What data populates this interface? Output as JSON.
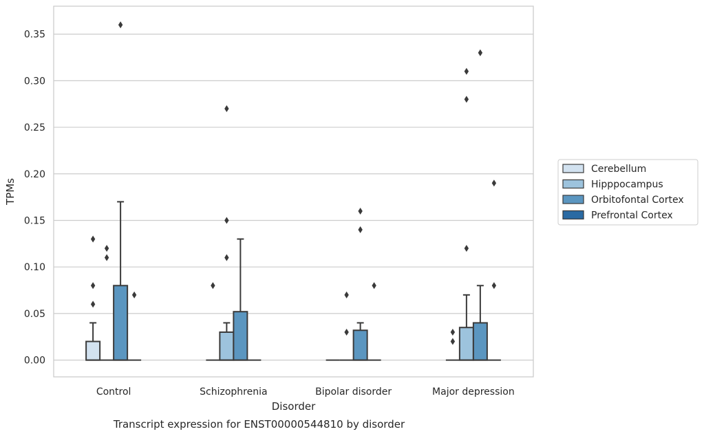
{
  "chart_data": {
    "type": "box",
    "xlabel": "Disorder",
    "ylabel": "TPMs",
    "caption": "Transcript expression for ENST00000544810 by disorder",
    "ylim": [
      -0.018,
      0.38
    ],
    "yticks": [
      "0.00",
      "0.05",
      "0.10",
      "0.15",
      "0.20",
      "0.25",
      "0.30",
      "0.35"
    ],
    "grid": "horizontal",
    "legend_position": "right",
    "categories": [
      "Control",
      "Schizophrenia",
      "Bipolar disorder",
      "Major depression"
    ],
    "series": [
      {
        "name": "Cerebellum",
        "color": "#d2e2f0",
        "boxes": [
          {
            "q1": 0,
            "median": 0,
            "q3": 0.02,
            "whisker_low": 0,
            "whisker_high": 0.04,
            "outliers": [
              0.06,
              0.08,
              0.13
            ]
          },
          {
            "q1": 0,
            "median": 0,
            "q3": 0,
            "whisker_low": 0,
            "whisker_high": 0,
            "outliers": [
              0.08
            ]
          },
          {
            "q1": 0,
            "median": 0,
            "q3": 0,
            "whisker_low": 0,
            "whisker_high": 0,
            "outliers": []
          },
          {
            "q1": 0,
            "median": 0,
            "q3": 0,
            "whisker_low": 0,
            "whisker_high": 0,
            "outliers": [
              0.02,
              0.03
            ]
          }
        ]
      },
      {
        "name": "Hipppocampus",
        "color": "#9dc3dd",
        "boxes": [
          {
            "q1": 0,
            "median": 0,
            "q3": 0,
            "whisker_low": 0,
            "whisker_high": 0,
            "outliers": [
              0.11,
              0.12
            ]
          },
          {
            "q1": 0,
            "median": 0,
            "q3": 0.03,
            "whisker_low": 0,
            "whisker_high": 0.04,
            "outliers": [
              0.11,
              0.15,
              0.27
            ]
          },
          {
            "q1": 0,
            "median": 0,
            "q3": 0,
            "whisker_low": 0,
            "whisker_high": 0,
            "outliers": [
              0.03,
              0.07
            ]
          },
          {
            "q1": 0,
            "median": 0,
            "q3": 0.035,
            "whisker_low": 0,
            "whisker_high": 0.07,
            "outliers": [
              0.12,
              0.28,
              0.31
            ]
          }
        ]
      },
      {
        "name": "Orbitofontal Cortex",
        "color": "#5b96c0",
        "boxes": [
          {
            "q1": 0,
            "median": 0,
            "q3": 0.08,
            "whisker_low": 0,
            "whisker_high": 0.17,
            "outliers": [
              0.36
            ]
          },
          {
            "q1": 0,
            "median": 0,
            "q3": 0.052,
            "whisker_low": 0,
            "whisker_high": 0.13,
            "outliers": []
          },
          {
            "q1": 0,
            "median": 0,
            "q3": 0.032,
            "whisker_low": 0,
            "whisker_high": 0.04,
            "outliers": [
              0.14,
              0.16
            ]
          },
          {
            "q1": 0,
            "median": 0,
            "q3": 0.04,
            "whisker_low": 0,
            "whisker_high": 0.08,
            "outliers": [
              0.33
            ]
          }
        ]
      },
      {
        "name": "Prefrontal Cortex",
        "color": "#2a6aa3",
        "boxes": [
          {
            "q1": 0,
            "median": 0,
            "q3": 0,
            "whisker_low": 0,
            "whisker_high": 0,
            "outliers": [
              0.07
            ]
          },
          {
            "q1": 0,
            "median": 0,
            "q3": 0,
            "whisker_low": 0,
            "whisker_high": 0,
            "outliers": []
          },
          {
            "q1": 0,
            "median": 0,
            "q3": 0,
            "whisker_low": 0,
            "whisker_high": 0,
            "outliers": [
              0.08
            ]
          },
          {
            "q1": 0,
            "median": 0,
            "q3": 0,
            "whisker_low": 0,
            "whisker_high": 0,
            "outliers": [
              0.08,
              0.19
            ]
          }
        ]
      }
    ]
  }
}
